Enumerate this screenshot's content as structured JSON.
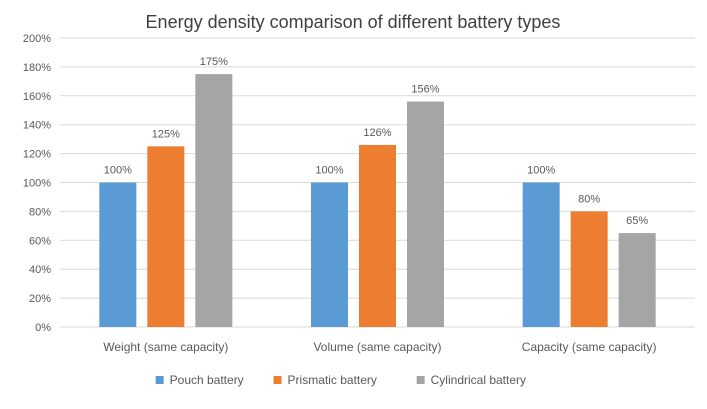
{
  "chart_data": {
    "type": "bar",
    "title": "Energy density comparison of different battery types",
    "xlabel": "",
    "ylabel": "",
    "categories": [
      "Weight (same capacity)",
      "Volume (same capacity)",
      "Capacity (same capacity)"
    ],
    "series": [
      {
        "name": "Pouch battery",
        "values": [
          100,
          100,
          100
        ],
        "labels": [
          "100%",
          "100%",
          "100%"
        ],
        "color": "#5B9BD5"
      },
      {
        "name": "Prismatic battery",
        "values": [
          125,
          126,
          80
        ],
        "labels": [
          "125%",
          "126%",
          "80%"
        ],
        "color": "#ED7D31"
      },
      {
        "name": "Cylindrical battery",
        "values": [
          175,
          156,
          65
        ],
        "labels": [
          "175%",
          "156%",
          "65%"
        ],
        "color": "#A5A5A5"
      }
    ],
    "ylim": [
      0,
      200
    ],
    "yticks": [
      0,
      20,
      40,
      60,
      80,
      100,
      120,
      140,
      160,
      180,
      200
    ],
    "ytick_labels": [
      "0%",
      "20%",
      "40%",
      "60%",
      "80%",
      "100%",
      "120%",
      "140%",
      "160%",
      "180%",
      "200%"
    ],
    "grid": true,
    "legend_position": "bottom",
    "colors": {
      "gridline": "#D9D9D9",
      "axis_text": "#595959",
      "title_text": "#404040"
    }
  }
}
